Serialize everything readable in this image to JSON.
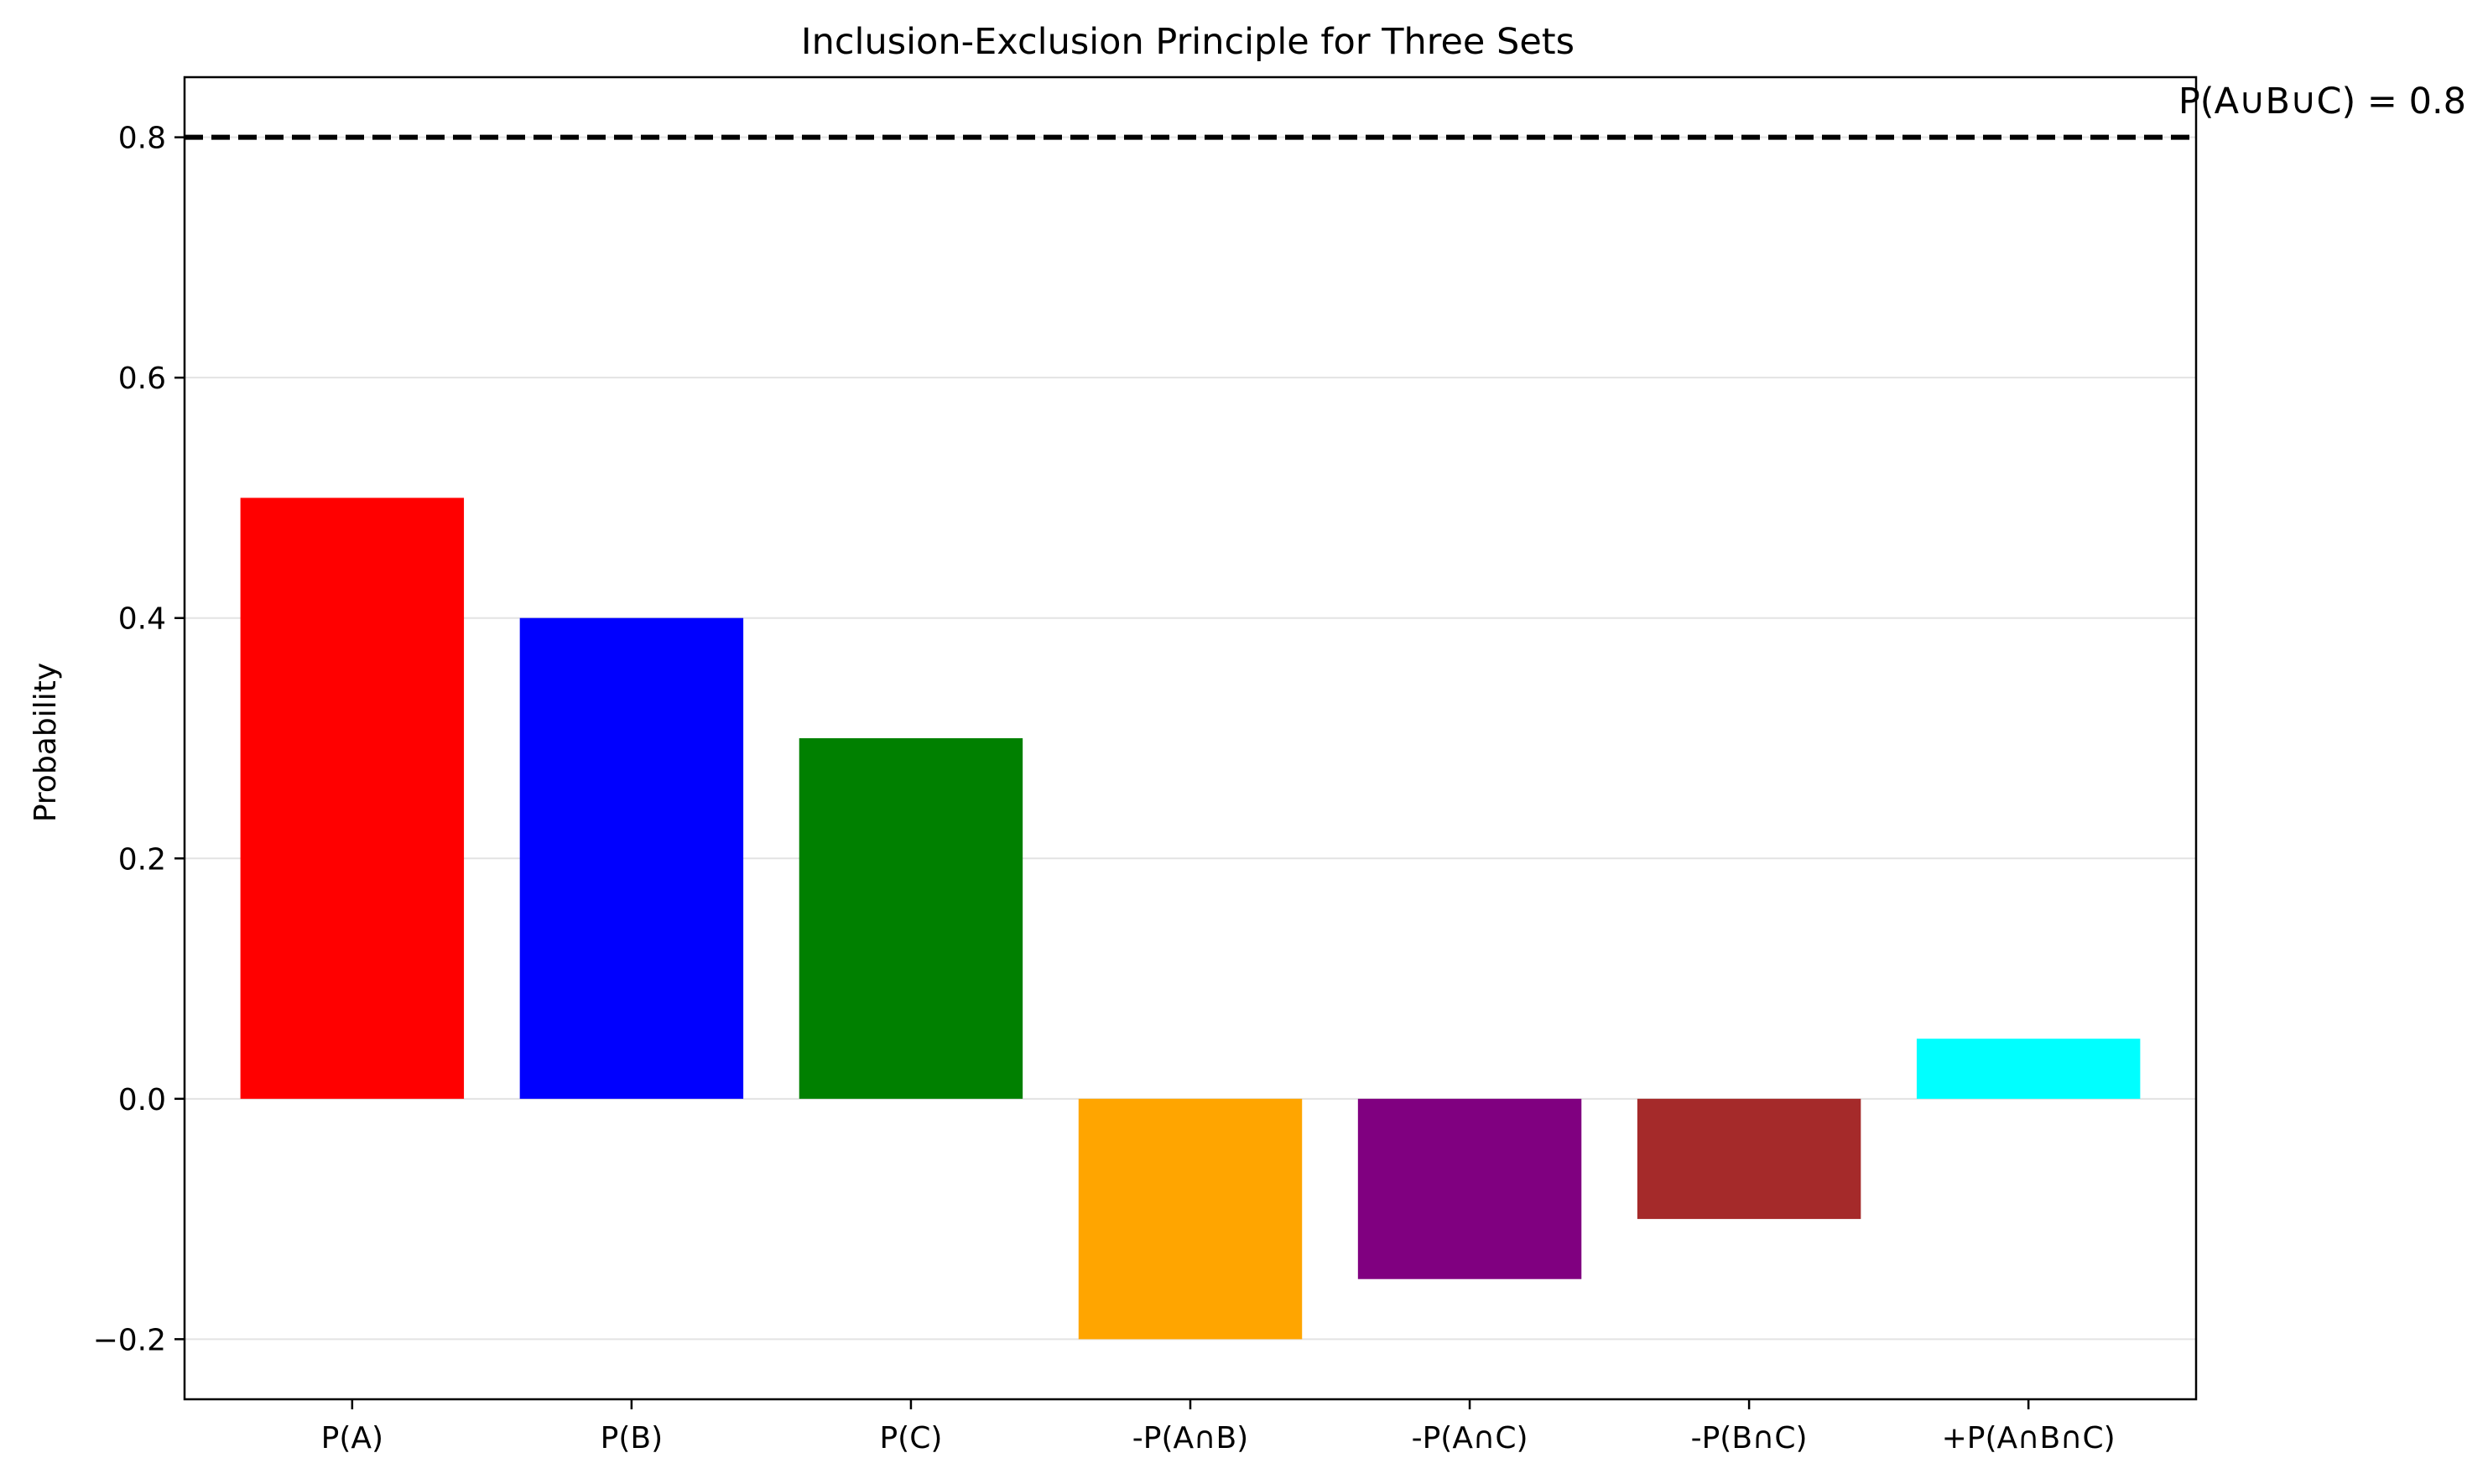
{
  "chart_data": {
    "type": "bar",
    "title": "Inclusion-Exclusion Principle for Three Sets",
    "xlabel": "",
    "ylabel": "Probability",
    "categories": [
      "P(A)",
      "P(B)",
      "P(C)",
      "-P(A∩B)",
      "-P(A∩C)",
      "-P(B∩C)",
      "+P(A∩B∩C)"
    ],
    "values": [
      0.5,
      0.4,
      0.3,
      -0.2,
      -0.15,
      -0.1,
      0.05
    ],
    "colors": [
      "#ff0000",
      "#0000ff",
      "#008000",
      "#ffa500",
      "#800080",
      "#a52a2a",
      "#00ffff"
    ],
    "ylim": [
      -0.25,
      0.85
    ],
    "yticks": [
      -0.2,
      0.0,
      0.2,
      0.4,
      0.6,
      0.8
    ],
    "ytick_labels": [
      "−0.2",
      "0.0",
      "0.2",
      "0.4",
      "0.6",
      "0.8"
    ],
    "grid": "y",
    "reference_line": {
      "value": 0.8,
      "style": "dashed",
      "color": "#000000",
      "label": "P(A∪B∪C) = 0.8"
    }
  }
}
